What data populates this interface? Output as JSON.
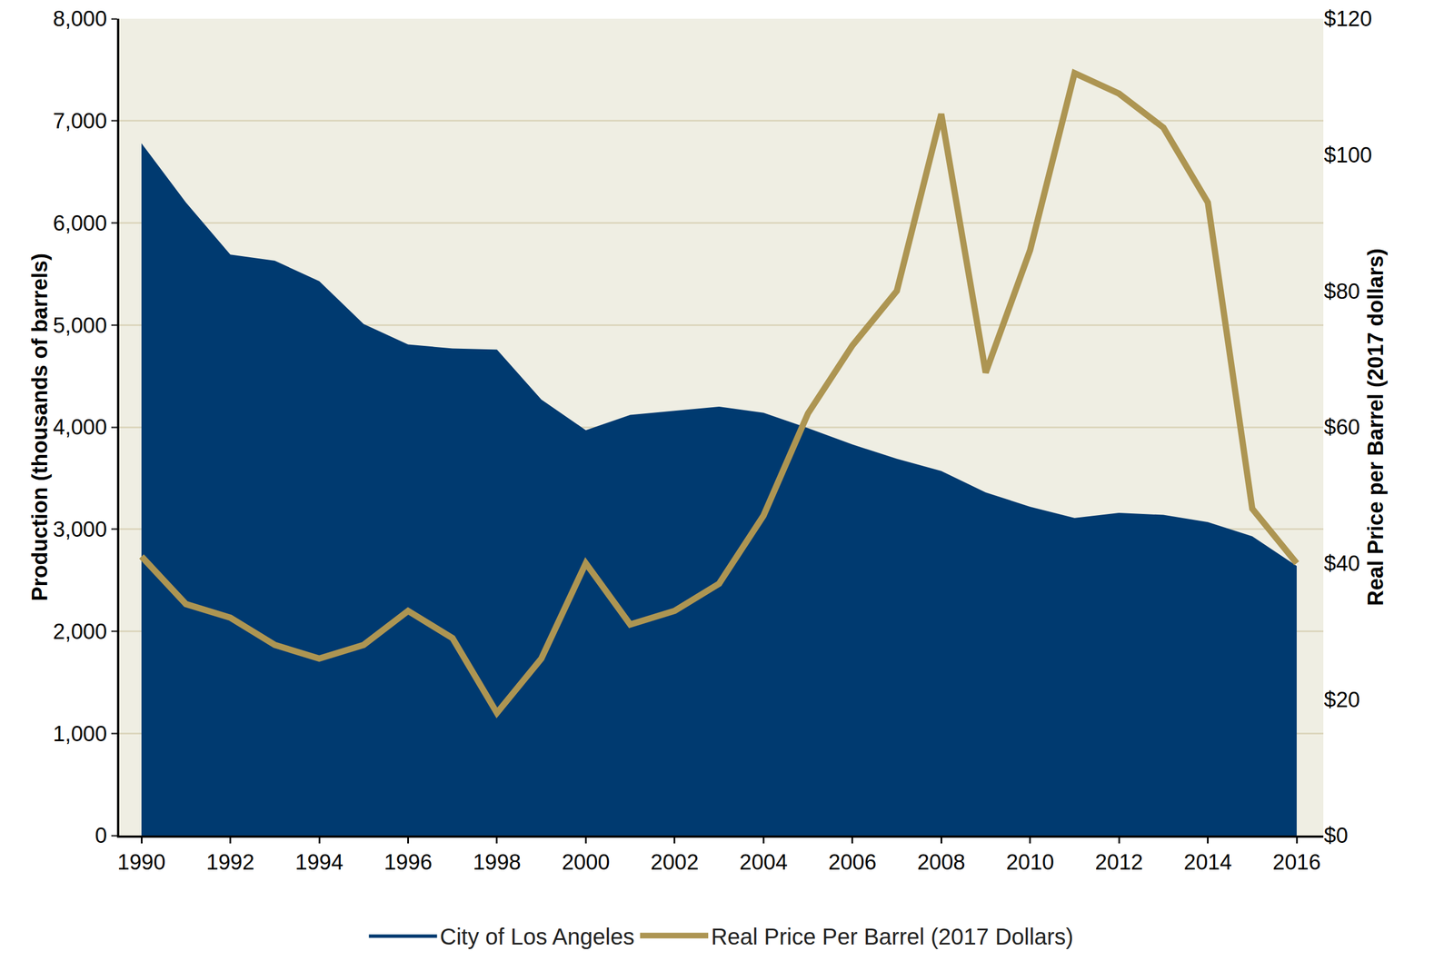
{
  "chart_data": {
    "type": "line",
    "x": [
      1990,
      1991,
      1992,
      1993,
      1994,
      1995,
      1996,
      1997,
      1998,
      1999,
      2000,
      2001,
      2002,
      2003,
      2004,
      2005,
      2006,
      2007,
      2008,
      2009,
      2010,
      2011,
      2012,
      2013,
      2014,
      2015,
      2016
    ],
    "series": [
      {
        "name": "City of Los Angeles",
        "type": "area",
        "color": "#003a70",
        "values": [
          6780,
          6200,
          5690,
          5630,
          5430,
          5010,
          4810,
          4770,
          4760,
          4270,
          3970,
          4120,
          4160,
          4200,
          4140,
          3990,
          3830,
          3690,
          3570,
          3360,
          3220,
          3110,
          3160,
          3140,
          3070,
          2930,
          2640
        ]
      },
      {
        "name": "Real Price Per Barrel (2017 Dollars)",
        "type": "line",
        "color": "#ad9552",
        "axis": "y2",
        "values": [
          41,
          34,
          32,
          28,
          26,
          28,
          33,
          29,
          18,
          26,
          40,
          31,
          33,
          37,
          47,
          62,
          72,
          80,
          106,
          68,
          86,
          112,
          109,
          104,
          93,
          48,
          40
        ]
      }
    ],
    "y_label": "Production (thousands of barrels)",
    "y2_label": "Real Price per Barrel (2017 dollars)",
    "xlim": [
      1989.5,
      2016.6
    ],
    "xticks": [
      1990,
      1992,
      1994,
      1996,
      1998,
      2000,
      2002,
      2004,
      2006,
      2008,
      2010,
      2012,
      2014,
      2016
    ],
    "ylim": [
      0,
      8000
    ],
    "yticks": [
      0,
      {
        "value": 1000,
        "label": "1,000"
      },
      {
        "value": 2000,
        "label": "2,000"
      },
      {
        "value": 3000,
        "label": "3,000"
      },
      {
        "value": 4000,
        "label": "4,000"
      },
      {
        "value": 5000,
        "label": "5,000"
      },
      {
        "value": 6000,
        "label": "6,000"
      },
      {
        "value": 7000,
        "label": "7,000"
      },
      {
        "value": 8000,
        "label": "8,000"
      }
    ],
    "y2lim": [
      0,
      120
    ],
    "y2ticks": [
      {
        "value": 0,
        "label": "$0"
      },
      {
        "value": 20,
        "label": "$20"
      },
      {
        "value": 40,
        "label": "$40"
      },
      {
        "value": 60,
        "label": "$60"
      },
      {
        "value": 80,
        "label": "$80"
      },
      {
        "value": 100,
        "label": "$100"
      },
      {
        "value": 120,
        "label": "$120"
      }
    ],
    "grid": true,
    "legend": "bottom"
  }
}
